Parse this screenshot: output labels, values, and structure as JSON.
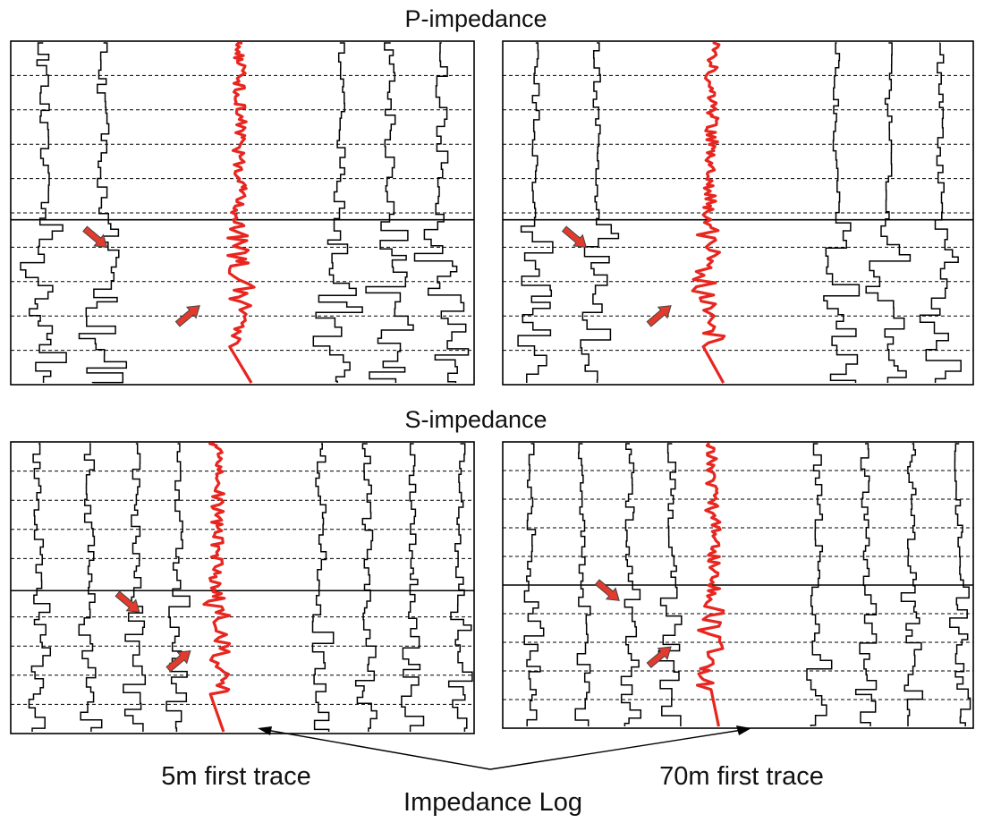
{
  "sections": [
    {
      "title": "P-impedance"
    },
    {
      "title": "S-impedance"
    }
  ],
  "captions": {
    "left": "5m first trace",
    "right": "70m first trace",
    "center": "Impedance Log"
  },
  "colors": {
    "trace": "#000000",
    "log": "#e8251f",
    "arrow_fill": "#e23b2e",
    "arrow_outline": "#444444",
    "frame": "#000000",
    "background": "#ffffff"
  }
}
